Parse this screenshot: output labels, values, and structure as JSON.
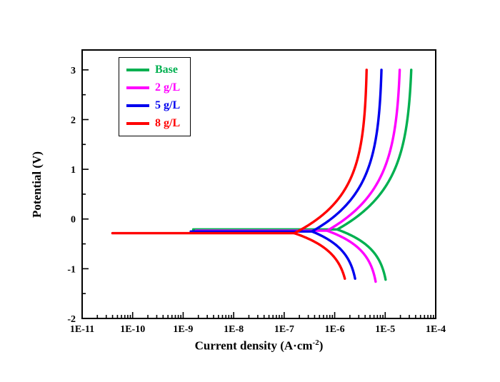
{
  "figure": {
    "background": "#ffffff",
    "frame_color": "#000000"
  },
  "chart_data": {
    "type": "line",
    "title": "",
    "xlabel": {
      "pre": "Current density (A·cm",
      "sup": "-2",
      "post": ")"
    },
    "ylabel": "Potential (V)",
    "x_axis": {
      "scale": "log",
      "min_exponent": -11,
      "max_exponent": -4,
      "tick_exponents": [
        -11,
        -10,
        -9,
        -8,
        -7,
        -6,
        -5,
        -4
      ],
      "tick_labels": [
        "1E-11",
        "1E-10",
        "1E-9",
        "1E-8",
        "1E-7",
        "1E-6",
        "1E-5",
        "1E-4"
      ]
    },
    "y_axis": {
      "min": -2,
      "max": 3.4,
      "major_tick_values": [
        -2,
        -1,
        0,
        1,
        2,
        3
      ],
      "tick_labels": [
        "-2",
        "-1",
        "0",
        "1",
        "2",
        "3"
      ],
      "minor_tick_step": 0.5
    },
    "grid": false,
    "legend": {
      "position": "top-left-inside",
      "entries": [
        {
          "label": "Base",
          "color": "#00b050"
        },
        {
          "label": "2 g/L",
          "color": "#ff00ff"
        },
        {
          "label": "5 g/L",
          "color": "#0000ee"
        },
        {
          "label": "8 g/L",
          "color": "#ff0000"
        }
      ]
    },
    "series": [
      {
        "name": "Base",
        "color": "#00b050",
        "Ecorr": -0.21,
        "log10_icorr": -5.95,
        "tail_log10_imin": -8.8,
        "anodic": {
          "log10_imax": -4.45,
          "tau": 0.85,
          "E_top": 3.0
        },
        "cathodic": {
          "log10_imax": -4.92,
          "tau": 0.38,
          "E_bottom": -1.22
        }
      },
      {
        "name": "2 g/L",
        "color": "#ff00ff",
        "Ecorr": -0.235,
        "log10_icorr": -6.15,
        "tail_log10_imin": -8.75,
        "anodic": {
          "log10_imax": -4.68,
          "tau": 0.85,
          "E_top": 3.0
        },
        "cathodic": {
          "log10_imax": -5.12,
          "tau": 0.38,
          "E_bottom": -1.26
        }
      },
      {
        "name": "5 g/L",
        "color": "#0000ee",
        "Ecorr": -0.25,
        "log10_icorr": -6.45,
        "tail_log10_imin": -8.85,
        "anodic": {
          "log10_imax": -5.05,
          "tau": 0.8,
          "E_top": 3.0
        },
        "cathodic": {
          "log10_imax": -5.52,
          "tau": 0.38,
          "E_bottom": -1.2
        }
      },
      {
        "name": "8 g/L",
        "color": "#ff0000",
        "Ecorr": -0.285,
        "log10_icorr": -6.8,
        "tail_log10_imin": -10.4,
        "anodic": {
          "log10_imax": -5.35,
          "tau": 0.75,
          "E_top": 3.0
        },
        "cathodic": {
          "log10_imax": -5.7,
          "tau": 0.38,
          "E_bottom": -1.2
        }
      }
    ]
  }
}
